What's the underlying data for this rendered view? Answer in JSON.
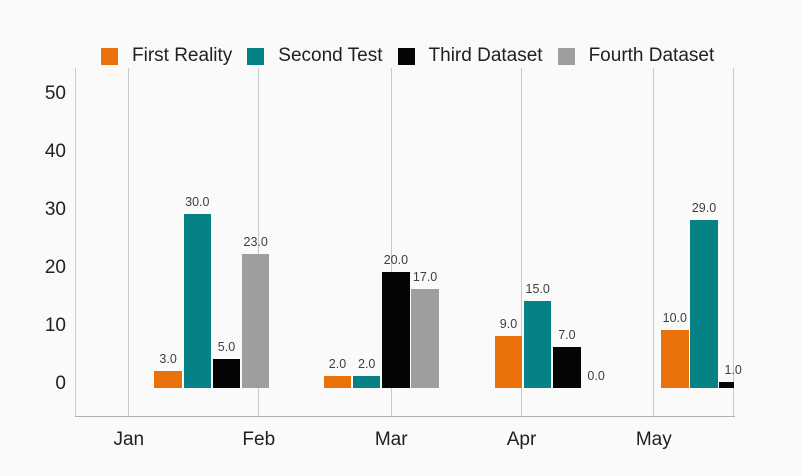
{
  "chart_data": {
    "type": "bar",
    "x_tick_labels": [
      "Jan",
      "Feb",
      "Mar",
      "Apr",
      "May"
    ],
    "y_ticks": [
      0,
      10,
      20,
      30,
      40,
      50
    ],
    "ylim": [
      0,
      50
    ],
    "grid": "vertical-only",
    "legend_position": "top",
    "value_labels": true,
    "value_label_format": "one-decimal",
    "group_count": 4,
    "last_group_partially_clipped": true,
    "series": [
      {
        "name": "First Reality",
        "color": "#E8710A",
        "values": [
          3.0,
          2.0,
          9.0,
          10.0
        ]
      },
      {
        "name": "Second Test",
        "color": "#068286",
        "values": [
          30.0,
          2.0,
          15.0,
          29.0
        ]
      },
      {
        "name": "Third Dataset",
        "color": "#050505",
        "values": [
          5.0,
          20.0,
          7.0,
          1.0
        ]
      },
      {
        "name": "Fourth Dataset",
        "color": "#9E9E9E",
        "values": [
          23.0,
          17.0,
          0.0,
          null
        ]
      }
    ]
  },
  "colors": {
    "background": "#FAFAFA",
    "gridline": "#C9C9C9",
    "axis_line": "#B0B0B0",
    "tick_text": "#202124",
    "value_text": "#3C4043"
  }
}
